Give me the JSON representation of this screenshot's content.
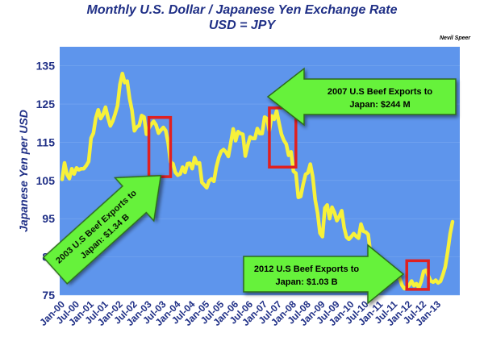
{
  "chart_data": {
    "type": "line",
    "title": "Monthly U.S. Dollar /  Japanese Yen Exchange Rate",
    "subtitle": "USD = JPY",
    "author": "Nevil Speer",
    "xlabel": "",
    "ylabel": "Japanese Yen per USD",
    "ylim": [
      75,
      140
    ],
    "yticks": [
      75,
      85,
      95,
      105,
      115,
      125,
      135
    ],
    "x_start": "Jan-00",
    "x_end": "Jan-13",
    "xticks": [
      "Jan-00",
      "Jul-00",
      "Jan-01",
      "Jul-01",
      "Jan-02",
      "Jul-02",
      "Jan-03",
      "Jul-03",
      "Jan-04",
      "Jul-04",
      "Jan-05",
      "Jul-05",
      "Jan-06",
      "Jul-06",
      "Jan-07",
      "Jul-07",
      "Jan-08",
      "Jul-08",
      "Jan-09",
      "Jul-09",
      "Jan-10",
      "Jul-10",
      "Jan-11",
      "Jul-11",
      "Jan-12",
      "Jul-12",
      "Jan-13"
    ],
    "colors": {
      "plot_bg": "#5e95ec",
      "line": "#f7f13a",
      "text": "#1f2f86",
      "arrow": "#66f23b",
      "highlight": "#e02020"
    },
    "series": [
      {
        "values": [
          105.3,
          109.6,
          106.6,
          105.5,
          108.1,
          106.7,
          108.3,
          107.8,
          108.1,
          108.1,
          108.9,
          110.0,
          116.1,
          117.4,
          121.4,
          123.5,
          121.2,
          122.3,
          124.2,
          121.5,
          119.3,
          120.5,
          122.4,
          124.6,
          130.1,
          133.0,
          130.6,
          131.0,
          126.4,
          123.4,
          118.0,
          119.0,
          119.4,
          122.0,
          121.6,
          117.1,
          118.7,
          119.7,
          120.5,
          119.5,
          117.4,
          118.2,
          118.9,
          118.0,
          114.8,
          109.8,
          109.4,
          107.1,
          106.4,
          106.7,
          108.5,
          107.1,
          109.4,
          109.5,
          108.1,
          111.0,
          109.4,
          109.6,
          104.5,
          103.8,
          103.1,
          104.9,
          105.4,
          104.8,
          108.5,
          111.0,
          112.6,
          113.1,
          112.4,
          111.3,
          114.9,
          118.5,
          115.4,
          117.8,
          117.3,
          117.1,
          111.4,
          114.1,
          116.4,
          116.0,
          116.0,
          118.6,
          117.3,
          117.3,
          121.6,
          121.2,
          118.1,
          121.9,
          121.0,
          123.2,
          120.1,
          117.1,
          115.5,
          114.5,
          111.6,
          112.5,
          107.4,
          106.9,
          100.6,
          100.8,
          104.0,
          106.6,
          107.0,
          109.3,
          106.0,
          100.0,
          96.5,
          91.2,
          90.3,
          97.8,
          98.6,
          95.0,
          98.0,
          96.6,
          94.5,
          95.6,
          97.1,
          92.7,
          90.2,
          89.6,
          90.3,
          91.1,
          90.4,
          89.9,
          93.6,
          91.7,
          91.5,
          90.9,
          85.9,
          85.0,
          83.6,
          81.7,
          83.5,
          84.2,
          82.9,
          82.0,
          82.5,
          80.9,
          81.0,
          80.5,
          79.5,
          77.6,
          76.7,
          77.0,
          77.6,
          78.7,
          77.5,
          78.0,
          76.9,
          78.6,
          81.2,
          81.5,
          80.0,
          78.7,
          78.4,
          78.9,
          78.2,
          78.6,
          80.3,
          82.4,
          86.4,
          91.0,
          94.2
        ]
      }
    ],
    "annotations": [
      {
        "line1": "2003 U.S Beef Exports to",
        "line2": "Japan: $1.34 B"
      },
      {
        "line1": "2007 U.S Beef Exports to",
        "line2": "Japan: $244 M"
      },
      {
        "line1": "2012 U.S Beef Exports to",
        "line2": "Japan: $1.03 B"
      }
    ],
    "highlights": [
      {
        "x_from": 36,
        "x_to": 45,
        "y_from": 106,
        "y_to": 121.5
      },
      {
        "x_from": 86,
        "x_to": 97,
        "y_from": 108.5,
        "y_to": 124
      },
      {
        "x_from": 143,
        "x_to": 152,
        "y_from": 76.5,
        "y_to": 84
      }
    ]
  }
}
